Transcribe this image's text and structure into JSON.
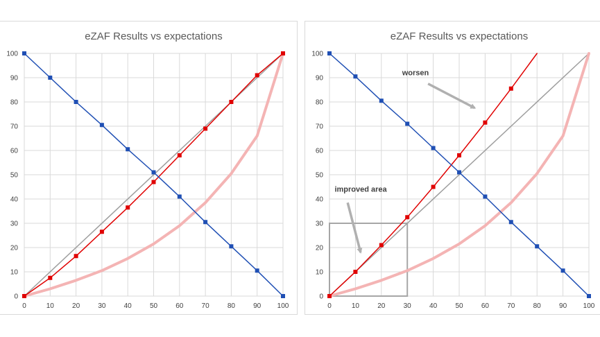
{
  "chart_data": [
    {
      "type": "line",
      "title": "eZAF Results vs expectations",
      "xlim": [
        0,
        100
      ],
      "ylim": [
        0,
        100
      ],
      "x_ticks": [
        0,
        10,
        20,
        30,
        40,
        50,
        60,
        70,
        80,
        90,
        100
      ],
      "y_ticks": [
        0,
        10,
        20,
        30,
        40,
        50,
        60,
        70,
        80,
        90,
        100
      ],
      "grid": true,
      "series": [
        {
          "color": "#9e9e9e",
          "width": 1.5,
          "markers": false,
          "x": [
            0,
            100
          ],
          "y": [
            0,
            100
          ]
        },
        {
          "color": "#f4b4b4",
          "width": 4,
          "markers": false,
          "x": [
            0,
            10,
            20,
            30,
            40,
            50,
            60,
            70,
            80,
            90,
            100
          ],
          "y": [
            0,
            3,
            6.5,
            10.5,
            15.5,
            21.5,
            29,
            38.5,
            50.5,
            66,
            100
          ]
        },
        {
          "color": "#e00000",
          "width": 1.5,
          "markers": true,
          "x": [
            0,
            10,
            20,
            30,
            40,
            50,
            60,
            70,
            80,
            90,
            100
          ],
          "y": [
            0,
            7.5,
            16.5,
            26.5,
            36.5,
            47,
            58,
            69,
            80,
            91,
            100
          ]
        },
        {
          "color": "#1f4fb4",
          "width": 1.5,
          "markers": true,
          "x": [
            0,
            10,
            20,
            30,
            40,
            50,
            60,
            70,
            80,
            90,
            100
          ],
          "y": [
            100,
            90,
            80,
            70.5,
            60.5,
            51,
            41,
            30.5,
            20.5,
            10.5,
            0
          ]
        }
      ],
      "annotations": []
    },
    {
      "type": "line",
      "title": "eZAF Results vs expectations",
      "xlim": [
        0,
        100
      ],
      "ylim": [
        0,
        100
      ],
      "x_ticks": [
        0,
        10,
        20,
        30,
        40,
        50,
        60,
        70,
        80,
        90,
        100
      ],
      "y_ticks": [
        0,
        10,
        20,
        30,
        40,
        50,
        60,
        70,
        80,
        90,
        100
      ],
      "grid": true,
      "series": [
        {
          "color": "#9e9e9e",
          "width": 1.5,
          "markers": false,
          "x": [
            0,
            100
          ],
          "y": [
            0,
            100
          ]
        },
        {
          "color": "#f4b4b4",
          "width": 4,
          "markers": false,
          "x": [
            0,
            10,
            20,
            30,
            40,
            50,
            60,
            70,
            80,
            90,
            100
          ],
          "y": [
            0,
            3,
            6.5,
            10.5,
            15.5,
            21.5,
            29,
            38.5,
            50.5,
            66,
            100
          ]
        },
        {
          "color": "#e00000",
          "width": 1.5,
          "markers": true,
          "x": [
            0,
            10,
            20,
            30,
            40,
            50,
            60,
            70
          ],
          "y": [
            0,
            10,
            21,
            32.5,
            45,
            58,
            71.5,
            85.5
          ],
          "extend_to": [
            80,
            100
          ]
        },
        {
          "color": "#1f4fb4",
          "width": 1.5,
          "markers": true,
          "x": [
            0,
            10,
            20,
            30,
            40,
            50,
            60,
            70,
            80,
            90,
            100
          ],
          "y": [
            100,
            90.5,
            80.5,
            71,
            61,
            51,
            41,
            30.5,
            20.5,
            10.5,
            0
          ]
        }
      ],
      "highlight_box": {
        "x": [
          0,
          30
        ],
        "y": [
          0,
          30
        ],
        "color": "#a6a6a6"
      },
      "annotations": [
        {
          "text": "worsen",
          "text_at": [
            28,
            91
          ],
          "arrow_from": [
            38,
            87.5
          ],
          "arrow_to": [
            56,
            77.5
          ]
        },
        {
          "text": "improved area",
          "text_at": [
            2,
            43
          ],
          "arrow_from": [
            7,
            38.5
          ],
          "arrow_to": [
            12,
            18
          ]
        }
      ]
    }
  ]
}
